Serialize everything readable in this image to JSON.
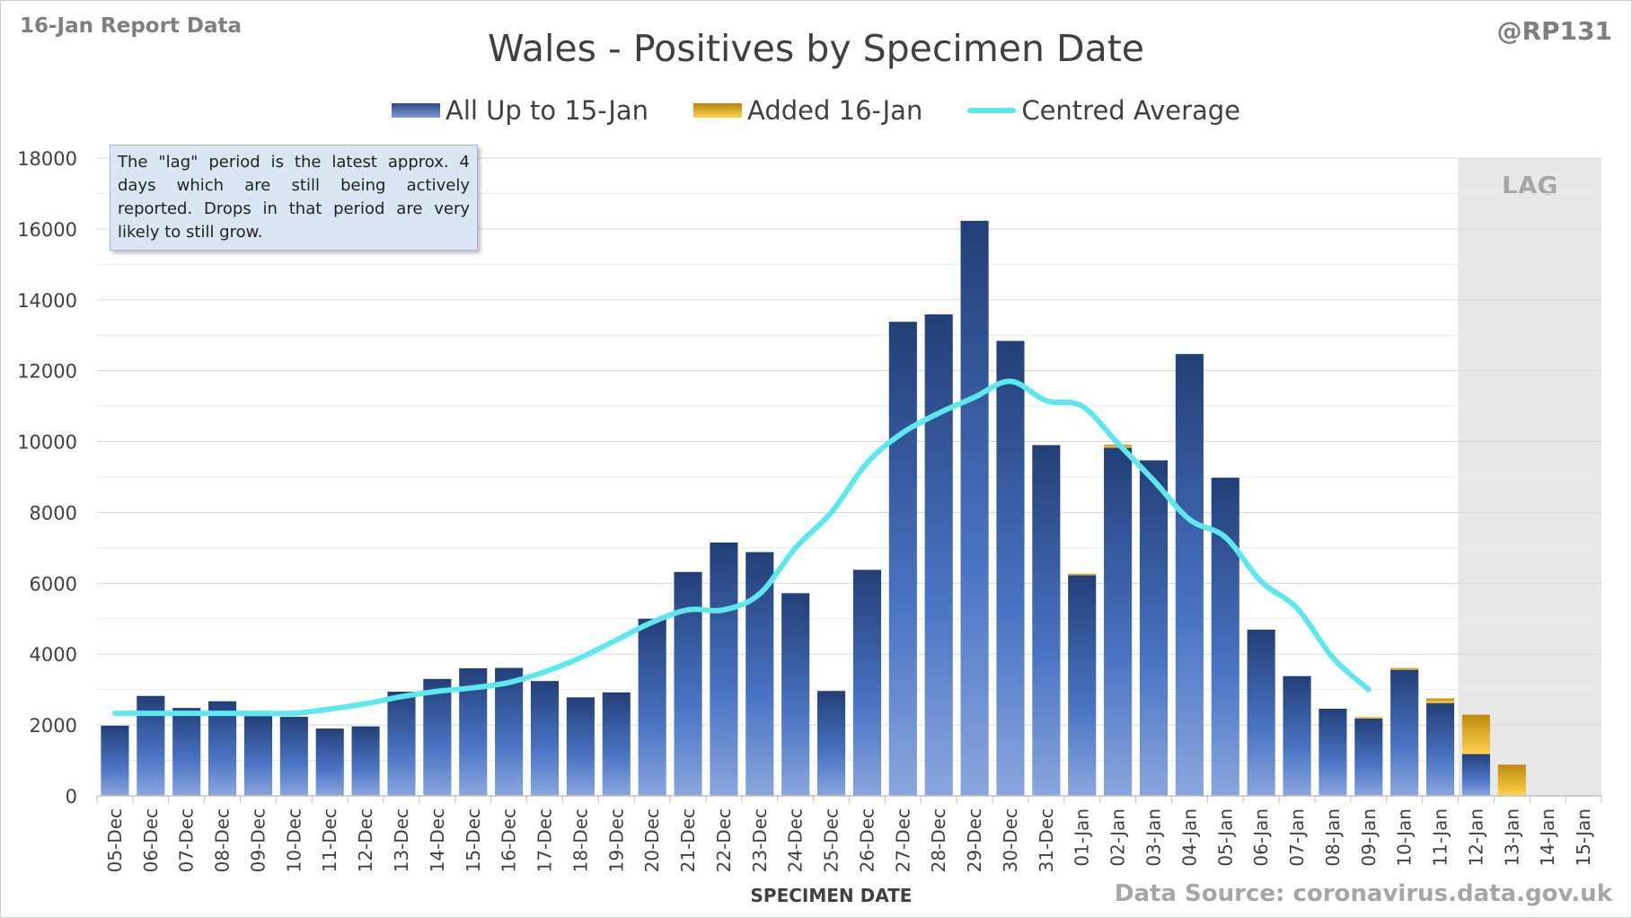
{
  "header": {
    "report_label": "16-Jan Report Data",
    "author": "@RP131",
    "title": "Wales - Positives by Specimen Date"
  },
  "legend": {
    "series1": "All Up to 15-Jan",
    "series2": "Added 16-Jan",
    "series3": "Centred Average"
  },
  "note": "The \"lag\" period is the latest approx. 4 days which are still being actively reported. Drops in that period are very likely to still grow.",
  "source": "Data Source: coronavirus.data.gov.uk",
  "colors": {
    "bar": "#3b64b0",
    "added": "#e6a814",
    "average": "#5de8ee",
    "lag": "#e8e8e8"
  },
  "chart_data": {
    "type": "bar",
    "xlabel": "SPECIMEN DATE",
    "ylabel": "",
    "ylim": [
      0,
      18000
    ],
    "yticks": [
      0,
      2000,
      4000,
      6000,
      8000,
      10000,
      12000,
      14000,
      16000,
      18000
    ],
    "categories": [
      "05-Dec",
      "06-Dec",
      "07-Dec",
      "08-Dec",
      "09-Dec",
      "10-Dec",
      "11-Dec",
      "12-Dec",
      "13-Dec",
      "14-Dec",
      "15-Dec",
      "16-Dec",
      "17-Dec",
      "18-Dec",
      "19-Dec",
      "20-Dec",
      "21-Dec",
      "22-Dec",
      "23-Dec",
      "24-Dec",
      "25-Dec",
      "26-Dec",
      "27-Dec",
      "28-Dec",
      "29-Dec",
      "30-Dec",
      "31-Dec",
      "01-Jan",
      "02-Jan",
      "03-Jan",
      "04-Jan",
      "05-Jan",
      "06-Jan",
      "07-Jan",
      "08-Jan",
      "09-Jan",
      "10-Jan",
      "11-Jan",
      "12-Jan",
      "13-Jan",
      "14-Jan",
      "15-Jan"
    ],
    "series": [
      {
        "name": "All Up to 15-Jan",
        "values": [
          1980,
          2820,
          2480,
          2670,
          2250,
          2230,
          1900,
          1960,
          2940,
          3300,
          3600,
          3610,
          3240,
          2780,
          2920,
          5000,
          6320,
          7150,
          6880,
          5720,
          2960,
          6380,
          13380,
          13590,
          16230,
          12840,
          9900,
          6230,
          9830,
          9470,
          12470,
          8980,
          4690,
          3380,
          2460,
          2180,
          3560,
          2620,
          1180,
          0,
          0,
          0
        ]
      },
      {
        "name": "Added 16-Jan",
        "values": [
          0,
          0,
          0,
          0,
          0,
          0,
          0,
          0,
          0,
          0,
          0,
          0,
          0,
          0,
          0,
          0,
          0,
          0,
          0,
          0,
          0,
          0,
          0,
          0,
          0,
          0,
          0,
          40,
          80,
          0,
          0,
          0,
          0,
          0,
          0,
          40,
          50,
          130,
          1110,
          880,
          0,
          0
        ]
      },
      {
        "name": "Centred Average",
        "values": [
          2330,
          2330,
          2330,
          2330,
          2330,
          2330,
          2450,
          2600,
          2800,
          2950,
          3050,
          3200,
          3500,
          3900,
          4400,
          4900,
          5250,
          5250,
          5700,
          7000,
          8000,
          9400,
          10250,
          10800,
          11250,
          11700,
          11150,
          11000,
          9950,
          8900,
          7800,
          7300,
          6050,
          5300,
          3900,
          3000,
          null,
          null,
          null,
          null,
          null,
          null
        ]
      }
    ],
    "lag_region": [
      "12-Jan",
      "15-Jan"
    ],
    "lag_label": "LAG",
    "grid": true
  }
}
